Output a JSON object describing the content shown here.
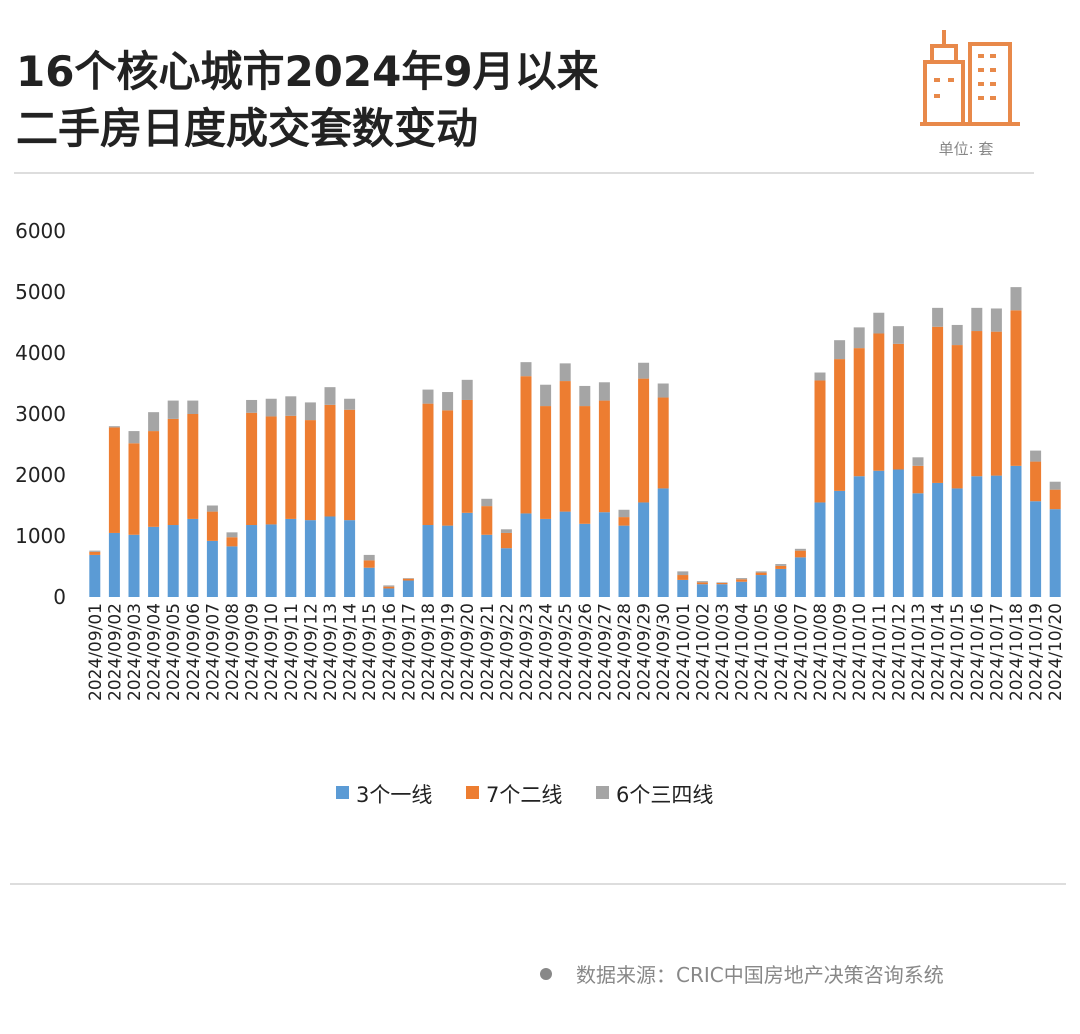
{
  "title_lines": [
    "16个核心城市2024年9月以来",
    "二手房日度成交套数变动"
  ],
  "unit": "单位: 套",
  "source": "数据来源：CRIC中国房地产决策咨询系统",
  "chart_data": {
    "type": "stacked_bar",
    "categories": [
      "2024/09/01",
      "2024/09/02",
      "2024/09/03",
      "2024/09/04",
      "2024/09/05",
      "2024/09/06",
      "2024/09/07",
      "2024/09/08",
      "2024/09/09",
      "2024/09/10",
      "2024/09/11",
      "2024/09/12",
      "2024/09/13",
      "2024/09/14",
      "2024/09/15",
      "2024/09/16",
      "2024/09/17",
      "2024/09/18",
      "2024/09/19",
      "2024/09/20",
      "2024/09/21",
      "2024/09/22",
      "2024/09/23",
      "2024/09/24",
      "2024/09/25",
      "2024/09/26",
      "2024/09/27",
      "2024/09/28",
      "2024/09/29",
      "2024/09/30",
      "2024/10/01",
      "2024/10/02",
      "2024/10/03",
      "2024/10/04",
      "2024/10/05",
      "2024/10/06",
      "2024/10/07",
      "2024/10/08",
      "2024/10/09",
      "2024/10/10",
      "2024/10/11",
      "2024/10/12",
      "2024/10/13",
      "2024/10/14",
      "2024/10/15",
      "2024/10/16",
      "2024/10/17",
      "2024/10/18",
      "2024/10/19",
      "2024/10/20"
    ],
    "series": [
      {
        "name": "3个一线",
        "color": "#5b9bd5",
        "values": [
          690,
          1050,
          1020,
          1150,
          1180,
          1280,
          920,
          830,
          1180,
          1190,
          1280,
          1260,
          1320,
          1260,
          480,
          140,
          270,
          1180,
          1170,
          1380,
          1020,
          800,
          1370,
          1280,
          1400,
          1200,
          1390,
          1170,
          1550,
          1780,
          280,
          210,
          210,
          250,
          360,
          460,
          650,
          1550,
          1740,
          1980,
          2070,
          2090,
          1700,
          1870,
          1780,
          1980,
          1990,
          2150,
          1570,
          1440
        ]
      },
      {
        "name": "7个二线",
        "color": "#ed7d31",
        "values": [
          50,
          1730,
          1500,
          1570,
          1740,
          1720,
          480,
          150,
          1840,
          1770,
          1690,
          1640,
          1830,
          1810,
          120,
          30,
          30,
          1990,
          1890,
          1850,
          470,
          250,
          2250,
          1850,
          2140,
          1930,
          1830,
          140,
          2030,
          1490,
          80,
          30,
          20,
          40,
          40,
          50,
          110,
          2000,
          2160,
          2100,
          2250,
          2060,
          450,
          2560,
          2350,
          2380,
          2360,
          2550,
          650,
          320
        ]
      },
      {
        "name": "6个三四线",
        "color": "#a5a5a5",
        "values": [
          20,
          20,
          200,
          310,
          300,
          220,
          100,
          80,
          210,
          290,
          320,
          290,
          290,
          180,
          90,
          20,
          10,
          230,
          300,
          330,
          120,
          60,
          230,
          350,
          290,
          330,
          300,
          120,
          260,
          230,
          60,
          20,
          10,
          20,
          20,
          30,
          30,
          130,
          310,
          340,
          340,
          290,
          140,
          310,
          330,
          380,
          380,
          380,
          180,
          130
        ]
      }
    ],
    "ylim": [
      0,
      6000
    ],
    "yticks": [
      0,
      1000,
      2000,
      3000,
      4000,
      5000,
      6000
    ],
    "grid": false,
    "legend": "bottom"
  }
}
